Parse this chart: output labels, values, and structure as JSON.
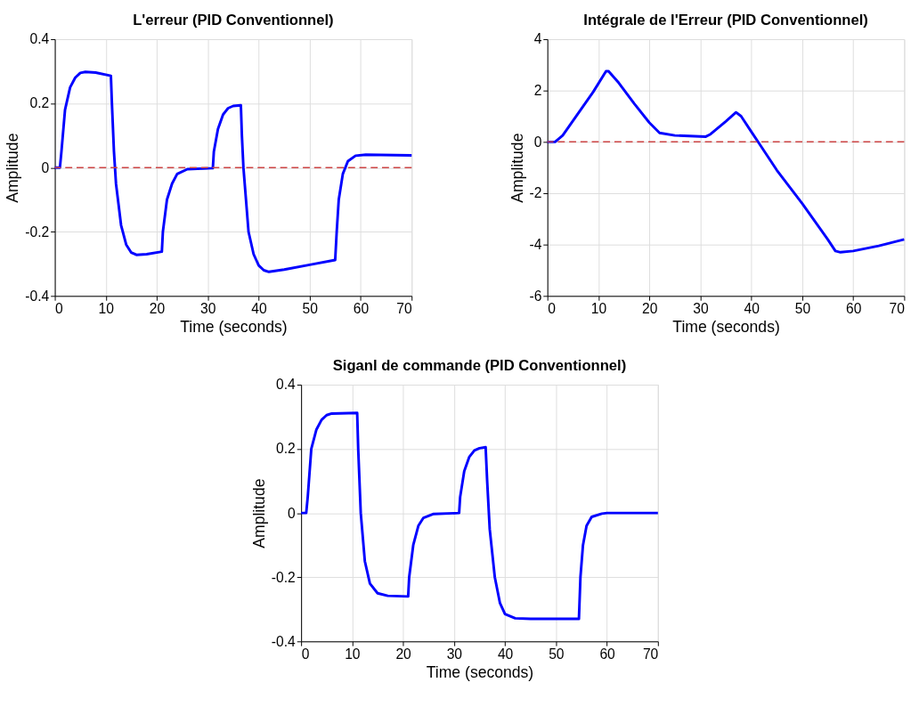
{
  "chart_data": [
    {
      "type": "line",
      "title": "L'erreur (PID Conventionnel)",
      "xlabel": "Time (seconds)",
      "ylabel": "Amplitude",
      "xlim": [
        0,
        70
      ],
      "xticks": [
        0,
        10,
        20,
        30,
        40,
        50,
        60,
        70
      ],
      "ylim": [
        -0.4,
        0.4
      ],
      "yticks": [
        -0.4,
        -0.2,
        0,
        0.2,
        0.4
      ],
      "grid": true,
      "line_style": "solid",
      "marker": "none",
      "ref_lines": [
        {
          "axis": "y",
          "value": 0,
          "color": "#cc4444",
          "line_style": "dashed"
        }
      ],
      "series": [
        {
          "color": "#0000ff",
          "x": [
            0,
            1,
            1.3,
            2,
            3,
            4,
            5,
            6,
            8,
            11,
            11.2,
            11.6,
            12,
            13,
            14,
            15,
            16,
            18,
            21,
            21.2,
            22,
            23,
            24,
            26,
            31,
            31.2,
            32,
            33,
            34,
            35,
            36.5,
            36.7,
            37,
            37.5,
            38,
            39,
            40,
            41,
            42,
            45,
            50,
            55,
            55.3,
            55.7,
            56.5,
            57.5,
            59,
            61,
            70
          ],
          "values": [
            0,
            0,
            0.05,
            0.18,
            0.25,
            0.28,
            0.295,
            0.298,
            0.296,
            0.286,
            0.2,
            0.05,
            -0.05,
            -0.18,
            -0.24,
            -0.265,
            -0.272,
            -0.27,
            -0.262,
            -0.2,
            -0.1,
            -0.05,
            -0.02,
            -0.005,
            -0.002,
            0.05,
            0.12,
            0.165,
            0.185,
            0.192,
            0.194,
            0.1,
            0,
            -0.1,
            -0.2,
            -0.27,
            -0.305,
            -0.32,
            -0.325,
            -0.318,
            -0.303,
            -0.288,
            -0.2,
            -0.1,
            -0.02,
            0.02,
            0.037,
            0.04,
            0.038
          ]
        }
      ]
    },
    {
      "type": "line",
      "title": "Intégrale de l'Erreur (PID Conventionnel)",
      "xlabel": "Time (seconds)",
      "ylabel": "Amplitude",
      "xlim": [
        0,
        70
      ],
      "xticks": [
        0,
        10,
        20,
        30,
        40,
        50,
        60,
        70
      ],
      "ylim": [
        -6,
        4
      ],
      "yticks": [
        -6,
        -4,
        -2,
        0,
        2,
        4
      ],
      "grid": true,
      "line_style": "solid",
      "marker": "none",
      "ref_lines": [
        {
          "axis": "y",
          "value": 0,
          "color": "#cc4444",
          "line_style": "dashed"
        }
      ],
      "series": [
        {
          "color": "#0000ff",
          "x": [
            0,
            1.5,
            3,
            6,
            9,
            11.5,
            12,
            14,
            17,
            20,
            22,
            25,
            31,
            32,
            35,
            37,
            38,
            40,
            41.5,
            45,
            50,
            55,
            56.5,
            57.5,
            60,
            65,
            70
          ],
          "values": [
            0,
            0,
            0.25,
            1.1,
            1.95,
            2.75,
            2.75,
            2.3,
            1.5,
            0.75,
            0.35,
            0.25,
            0.2,
            0.3,
            0.8,
            1.15,
            1.0,
            0.4,
            -0.05,
            -1.1,
            -2.4,
            -3.8,
            -4.25,
            -4.3,
            -4.25,
            -4.05,
            -3.8
          ]
        }
      ]
    },
    {
      "type": "line",
      "title": "Siganl de commande (PID Conventionnel)",
      "xlabel": "Time (seconds)",
      "ylabel": "Amplitude",
      "xlim": [
        0,
        70
      ],
      "xticks": [
        0,
        10,
        20,
        30,
        40,
        50,
        60,
        70
      ],
      "ylim": [
        -0.4,
        0.4
      ],
      "yticks": [
        -0.4,
        -0.2,
        0,
        0.2,
        0.4
      ],
      "grid": true,
      "line_style": "solid",
      "marker": "none",
      "series": [
        {
          "color": "#0000ff",
          "x": [
            0,
            1,
            1.3,
            2,
            3,
            4,
            5,
            6,
            11,
            11.2,
            11.7,
            12.5,
            13.5,
            15,
            17,
            21,
            21.2,
            22,
            23,
            24,
            26,
            31,
            31.2,
            32,
            33,
            34,
            35,
            36.2,
            36.5,
            37,
            38,
            39,
            40,
            42,
            45,
            54.5,
            54.8,
            55.3,
            56,
            57,
            59,
            60,
            70
          ],
          "values": [
            0,
            0,
            0.05,
            0.2,
            0.26,
            0.29,
            0.305,
            0.31,
            0.312,
            0.2,
            0,
            -0.15,
            -0.22,
            -0.25,
            -0.258,
            -0.26,
            -0.2,
            -0.1,
            -0.04,
            -0.015,
            -0.003,
            0,
            0.05,
            0.13,
            0.175,
            0.195,
            0.202,
            0.205,
            0.1,
            -0.05,
            -0.2,
            -0.28,
            -0.315,
            -0.328,
            -0.33,
            -0.33,
            -0.2,
            -0.1,
            -0.04,
            -0.012,
            -0.002,
            0,
            0
          ]
        }
      ]
    }
  ]
}
